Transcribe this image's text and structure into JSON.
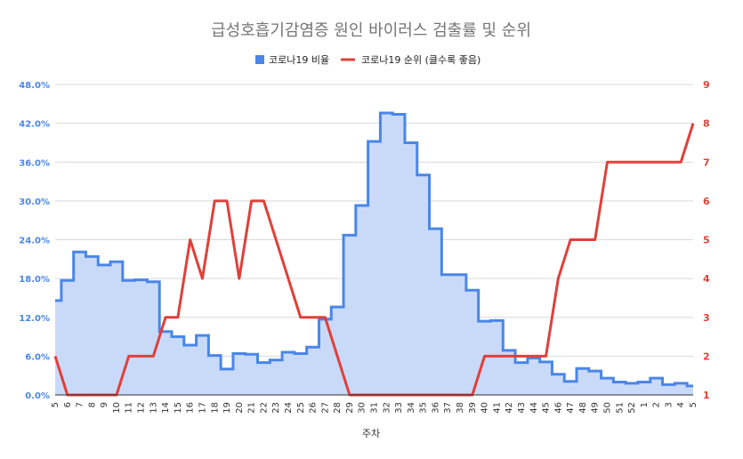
{
  "chart_data": {
    "type": "area+line",
    "title": "급성호흡기감염증 원인 바이러스 검출률 및 순위",
    "xlabel": "주차",
    "x": [
      "5",
      "6",
      "7",
      "8",
      "9",
      "10",
      "11",
      "12",
      "13",
      "14",
      "15",
      "16",
      "17",
      "18",
      "19",
      "20",
      "21",
      "22",
      "23",
      "24",
      "25",
      "26",
      "27",
      "28",
      "29",
      "30",
      "31",
      "32",
      "33",
      "34",
      "35",
      "36",
      "37",
      "38",
      "39",
      "40",
      "41",
      "42",
      "43",
      "44",
      "45",
      "46",
      "47",
      "48",
      "49",
      "50",
      "51",
      "52",
      "1",
      "2",
      "3",
      "4",
      "5"
    ],
    "y_left": {
      "ticks": [
        "0.0%",
        "6.0%",
        "12.0%",
        "18.0%",
        "24.0%",
        "30.0%",
        "36.0%",
        "42.0%",
        "48.0%"
      ],
      "min": 0,
      "max": 48
    },
    "y_right": {
      "ticks": [
        "1",
        "2",
        "3",
        "4",
        "5",
        "6",
        "7",
        "8",
        "9"
      ],
      "min": 1,
      "max": 9
    },
    "series": [
      {
        "name": "코로나19 비율",
        "color": "#4a86e8",
        "fill": "#c9daf8",
        "style": "stepped-area",
        "values": [
          14.6,
          17.7,
          22.1,
          21.4,
          20.1,
          20.6,
          17.7,
          17.8,
          17.5,
          9.8,
          9.0,
          7.7,
          9.2,
          6.1,
          4.0,
          6.4,
          6.3,
          5.0,
          5.4,
          6.6,
          6.4,
          7.4,
          11.7,
          13.6,
          24.7,
          29.3,
          39.2,
          43.6,
          43.4,
          39.0,
          34.0,
          25.7,
          18.6,
          18.6,
          16.2,
          11.4,
          11.5,
          6.9,
          5.0,
          5.7,
          5.1,
          3.2,
          2.1,
          4.1,
          3.7,
          2.6,
          2.0,
          1.8,
          2.0,
          2.6,
          1.6,
          1.8,
          1.4
        ]
      },
      {
        "name": "코로나19 순위 (클수록 좋음)",
        "color": "#e0403a",
        "style": "line",
        "axis": "right",
        "values": [
          2,
          1,
          1,
          1,
          1,
          1,
          2,
          2,
          2,
          3,
          3,
          5,
          4,
          6,
          6,
          4,
          6,
          6,
          5,
          4,
          3,
          3,
          3,
          2,
          1,
          1,
          1,
          1,
          1,
          1,
          1,
          1,
          1,
          1,
          1,
          2,
          2,
          2,
          2,
          2,
          2,
          4,
          5,
          5,
          5,
          7,
          7,
          7,
          7,
          7,
          7,
          7,
          8
        ]
      }
    ],
    "grid": true,
    "legend": "top-center"
  }
}
